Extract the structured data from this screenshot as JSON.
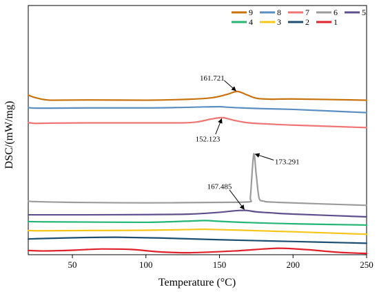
{
  "chart_data": {
    "type": "line",
    "title": "",
    "xlabel": "Temperature (°C)",
    "ylabel": "DSC/(mW/mg)",
    "xlim": [
      20,
      250
    ],
    "xticks": [
      50,
      100,
      150,
      200,
      250
    ],
    "ylim": [
      0,
      100
    ],
    "grid": false,
    "legend_position": "top-right",
    "series": [
      {
        "name": "9",
        "color": "#C8720C",
        "x": [
          20,
          25,
          35,
          60,
          100,
          130,
          145,
          155,
          162,
          168,
          175,
          185,
          200,
          250
        ],
        "y": [
          64.0,
          63.0,
          62.0,
          62.1,
          62.0,
          62.4,
          63.0,
          64.3,
          65.5,
          64.3,
          62.8,
          62.4,
          62.5,
          62.0
        ]
      },
      {
        "name": "8",
        "color": "#5B8EC0",
        "x": [
          20,
          25,
          35,
          60,
          100,
          125,
          140,
          150,
          155,
          165,
          180,
          200,
          250
        ],
        "y": [
          59.0,
          58.8,
          58.8,
          58.9,
          58.9,
          59.1,
          59.3,
          59.4,
          59.2,
          58.9,
          58.6,
          58.3,
          57.0
        ]
      },
      {
        "name": "7",
        "color": "#EF7575",
        "x": [
          20,
          25,
          35,
          60,
          100,
          125,
          135,
          145,
          152,
          160,
          170,
          185,
          200,
          250
        ],
        "y": [
          53.0,
          52.7,
          52.8,
          52.9,
          52.9,
          52.9,
          53.3,
          54.5,
          55.0,
          53.9,
          52.9,
          52.4,
          52.0,
          51.0
        ]
      },
      {
        "name": "6",
        "color": "#9B9B9B",
        "x": [
          20,
          25,
          50,
          100,
          150,
          170,
          171,
          173.3,
          175,
          177,
          180,
          190,
          250
        ],
        "y": [
          21.5,
          21.3,
          21.0,
          20.8,
          21.0,
          21.2,
          23.0,
          40.5,
          32.0,
          22.5,
          21.5,
          21.0,
          19.8
        ]
      },
      {
        "name": "5",
        "color": "#5E4F8C",
        "x": [
          20,
          30,
          60,
          100,
          130,
          150,
          160,
          167.5,
          175,
          185,
          200,
          250
        ],
        "y": [
          16.0,
          16.0,
          16.0,
          16.1,
          16.3,
          17.0,
          17.6,
          17.8,
          17.2,
          16.8,
          16.3,
          15.2
        ]
      },
      {
        "name": "4",
        "color": "#22B573",
        "x": [
          20,
          30,
          60,
          100,
          130,
          140,
          150,
          170,
          200,
          250
        ],
        "y": [
          13.3,
          13.2,
          13.1,
          13.0,
          13.5,
          13.7,
          13.4,
          12.9,
          12.4,
          11.9
        ]
      },
      {
        "name": "3",
        "color": "#F5C518",
        "x": [
          20,
          30,
          60,
          100,
          130,
          140,
          160,
          200,
          250
        ],
        "y": [
          9.7,
          9.6,
          9.7,
          9.8,
          10.1,
          10.2,
          9.9,
          9.2,
          8.2
        ]
      },
      {
        "name": "2",
        "color": "#1C4E73",
        "x": [
          20,
          30,
          60,
          80,
          110,
          150,
          200,
          250
        ],
        "y": [
          6.3,
          6.5,
          6.9,
          7.0,
          6.7,
          6.0,
          5.3,
          4.6
        ]
      },
      {
        "name": "1",
        "color": "#E0202A",
        "x": [
          20,
          30,
          50,
          70,
          90,
          110,
          130,
          160,
          190,
          210,
          230,
          250
        ],
        "y": [
          1.7,
          1.5,
          1.8,
          2.3,
          2.1,
          1.1,
          0.8,
          1.5,
          2.6,
          2.0,
          1.0,
          0.5
        ]
      }
    ],
    "annotations": [
      {
        "text": "161.721",
        "x": 162,
        "y": 65.5,
        "label_x": 145,
        "label_y": 71.0
      },
      {
        "text": "152.123",
        "x": 152,
        "y": 55.0,
        "label_x": 142,
        "label_y": 46.5
      },
      {
        "text": "173.291",
        "x": 173.3,
        "y": 40.5,
        "label_x": 196,
        "label_y": 37.5
      },
      {
        "text": "167.485",
        "x": 167.5,
        "y": 17.8,
        "label_x": 150,
        "label_y": 27.5
      }
    ]
  }
}
